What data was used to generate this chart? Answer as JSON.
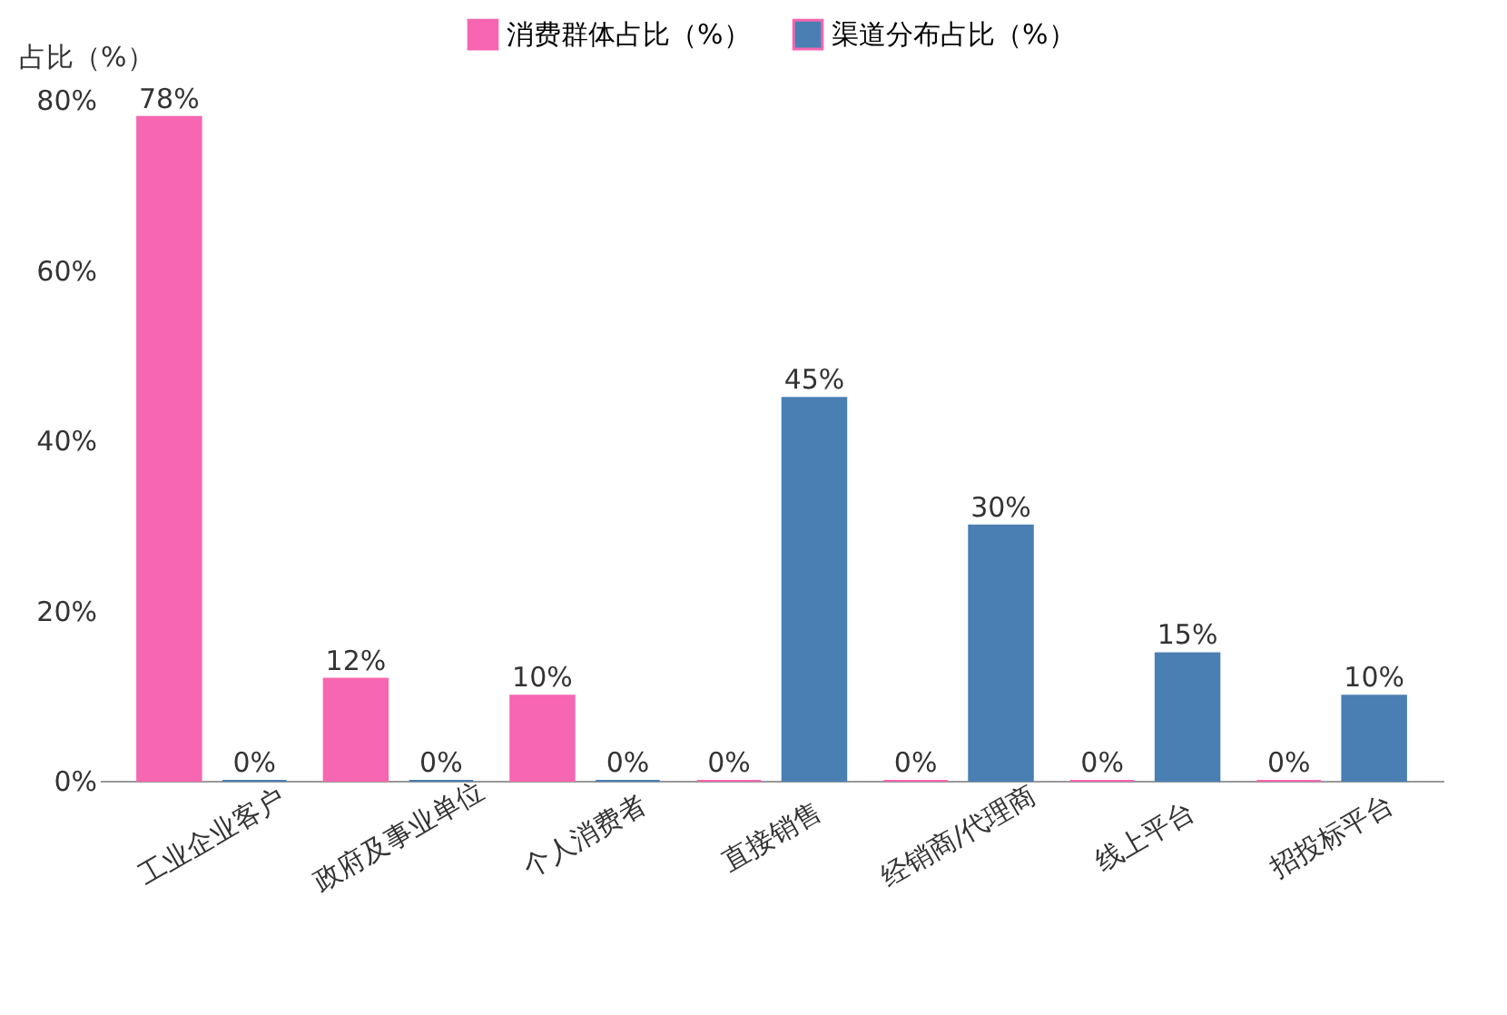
{
  "chart_data": {
    "type": "bar",
    "ylabel": "占比（%）",
    "categories": [
      "工业企业客户",
      "政府及事业单位",
      "个人消费者",
      "直接销售",
      "经销商/代理商",
      "线上平台",
      "招投标平台"
    ],
    "series": [
      {
        "name": "消费群体占比（%）",
        "color": "#f766b0",
        "values": [
          78,
          12,
          10,
          0,
          0,
          0,
          0
        ],
        "value_labels": [
          "78%",
          "12%",
          "10%",
          "0%",
          "0%",
          "0%",
          "0%"
        ]
      },
      {
        "name": "渠道分布占比（%）",
        "color": "#4a7fb3",
        "values": [
          0,
          0,
          0,
          45,
          30,
          15,
          10
        ],
        "value_labels": [
          "0%",
          "0%",
          "0%",
          "45%",
          "30%",
          "15%",
          "10%"
        ]
      }
    ],
    "ylim": [
      0,
      80
    ],
    "yticks": [
      {
        "value": 0,
        "label": "0%"
      },
      {
        "value": 20,
        "label": "20%"
      },
      {
        "value": 40,
        "label": "40%"
      },
      {
        "value": 60,
        "label": "60%"
      },
      {
        "value": 80,
        "label": "80%"
      }
    ],
    "grid": false,
    "legend": "top"
  }
}
